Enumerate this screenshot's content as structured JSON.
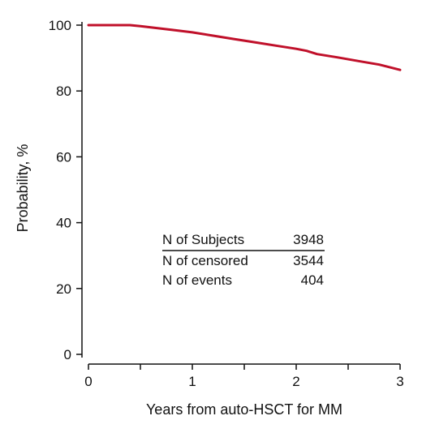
{
  "chart_data": {
    "type": "line",
    "xlabel": "Years from auto-HSCT for MM",
    "ylabel": "Probability, %",
    "xlim": [
      0,
      3
    ],
    "ylim": [
      0,
      100
    ],
    "x_ticks": [
      "0",
      "1",
      "2",
      "3"
    ],
    "y_ticks": [
      "0",
      "20",
      "40",
      "60",
      "80",
      "100"
    ],
    "grid": false,
    "series": [
      {
        "color": "#c0102a",
        "x": [
          0,
          0.2,
          0.4,
          0.5,
          0.6,
          0.8,
          1.0,
          1.2,
          1.4,
          1.6,
          1.8,
          2.0,
          2.1,
          2.2,
          2.4,
          2.6,
          2.8,
          3.0
        ],
        "y": [
          100,
          100,
          100,
          99.7,
          99.3,
          98.6,
          97.8,
          96.8,
          95.8,
          94.8,
          93.8,
          92.8,
          92.2,
          91.2,
          90.2,
          89.1,
          88.0,
          86.4
        ]
      }
    ],
    "table": {
      "rows": [
        {
          "label": "N of Subjects",
          "value": "3948"
        },
        {
          "label": "N of censored",
          "value": "3544"
        },
        {
          "label": "N of events",
          "value": "404"
        }
      ]
    }
  }
}
